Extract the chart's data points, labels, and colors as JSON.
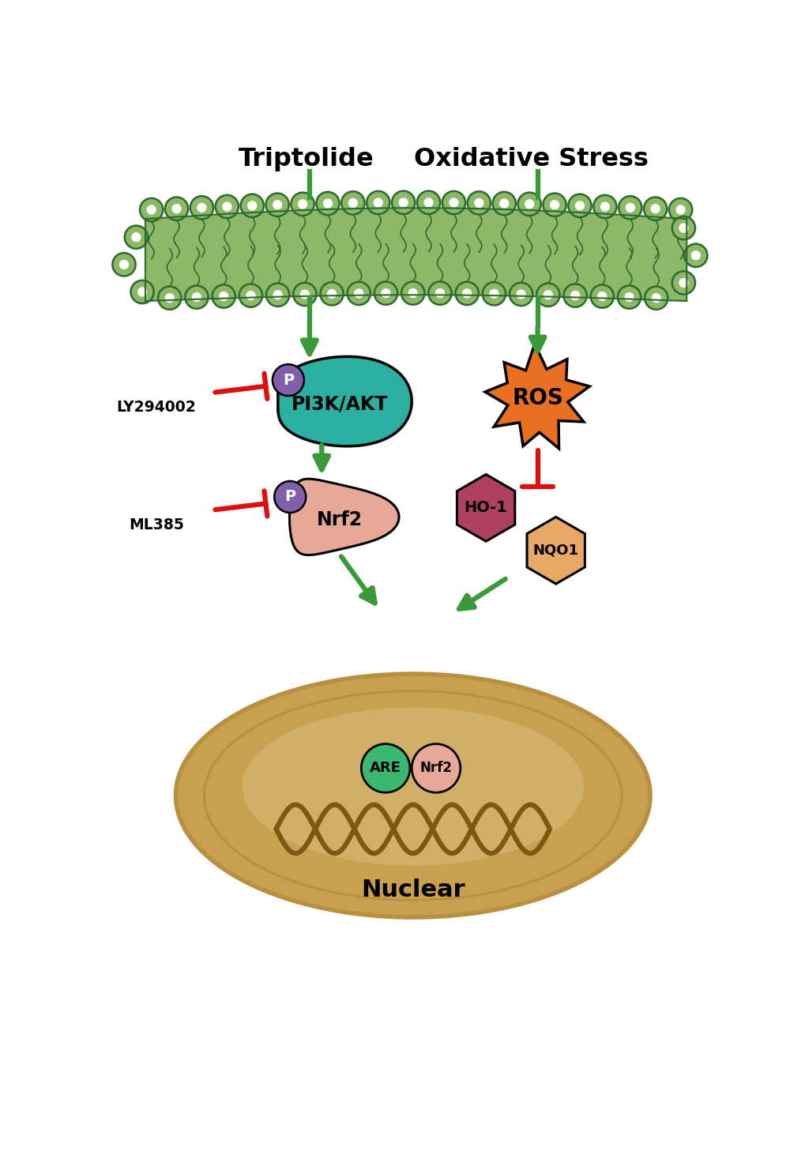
{
  "title_triptolide": "Triptolide",
  "title_oxidative_stress": "Oxidative Stress",
  "pi3k_akt_label": "PI3K/AKT",
  "nrf2_label": "Nrf2",
  "ros_label": "ROS",
  "ho1_label": "HO-1",
  "nqo1_label": "NQO1",
  "p_label": "P",
  "ly_label": "LY294002",
  "ml_label": "ML385",
  "nuclear_label": "Nuclear",
  "are_label": "ARE",
  "nrf2_nucleus_label": "Nrf2",
  "membrane_fill": "#8db868",
  "membrane_dark": "#2d6a2d",
  "membrane_light": "#b5d18a",
  "pi3k_color": "#2aafa0",
  "nrf2_color": "#e8a898",
  "ros_color": "#e87020",
  "ho1_color": "#b04060",
  "nqo1_color": "#e8a868",
  "p_circle_color": "#8060a8",
  "green_arrow": "#3a9a3a",
  "red_inhibit": "#dd1010",
  "nuclear_outer": "#b89040",
  "nuclear_fill": "#c8a050",
  "nuclear_inner_fill": "#d4b870",
  "dna_color": "#7a5a10",
  "are_color": "#3ab870",
  "nrf2_nucleus_color": "#e8a898",
  "bg_color": "#ffffff"
}
